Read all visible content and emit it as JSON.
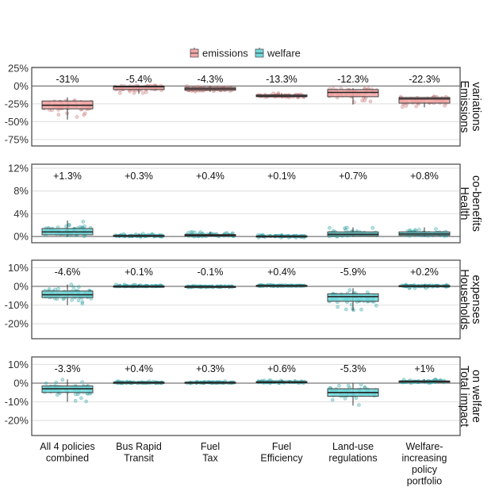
{
  "chart_data": {
    "type": "box",
    "title": "",
    "legend": {
      "position": "top",
      "entries": [
        {
          "name": "emissions",
          "fill": "#f4a9a8",
          "point": "#c97b7b"
        },
        {
          "name": "welfare",
          "fill": "#72d9dc",
          "point": "#3aa6a8"
        }
      ]
    },
    "categories": [
      "All 4 policies\ncombined",
      "Bus Rapid\nTransit",
      "Fuel\nTax",
      "Fuel\nEfficiency",
      "Land-use\nregulations",
      "Welfare-\nincreasing\npolicy\nportfolio"
    ],
    "category_labels": [
      [
        "All 4 policies",
        "combined"
      ],
      [
        "Bus Rapid",
        "Transit"
      ],
      [
        "Fuel",
        "Tax"
      ],
      [
        "Fuel",
        "Efficiency"
      ],
      [
        "Land-use",
        "regulations"
      ],
      [
        "Welfare-",
        "increasing",
        "policy",
        "portfolio"
      ]
    ],
    "panels": [
      {
        "strip": [
          "Emissions",
          "variations"
        ],
        "series": "emissions",
        "ylim": [
          -84,
          26
        ],
        "ticks": [
          25,
          0,
          -25,
          -50,
          -75
        ],
        "tick_labels": [
          "25%",
          "0%",
          "-25%",
          "-50%",
          "-75%"
        ],
        "means": [
          "-31%",
          "-5.4%",
          "-4.3%",
          "-13.3%",
          "-12.3%",
          "-22.3%"
        ],
        "boxes": [
          {
            "q1": -32,
            "median": -27,
            "q3": -21,
            "whisker_low": -47,
            "whisker_high": -16
          },
          {
            "q1": -5,
            "median": -1,
            "q3": 0,
            "whisker_low": -11,
            "whisker_high": 0
          },
          {
            "q1": -6,
            "median": -4,
            "q3": -2,
            "whisker_low": -8,
            "whisker_high": 0
          },
          {
            "q1": -15,
            "median": -14,
            "q3": -12.5,
            "whisker_low": -16,
            "whisker_high": -10
          },
          {
            "q1": -15,
            "median": -9,
            "q3": -5,
            "whisker_low": -26,
            "whisker_high": -3
          },
          {
            "q1": -24,
            "median": -18,
            "q3": -16,
            "whisker_low": -30,
            "whisker_high": -16
          }
        ]
      },
      {
        "strip": [
          "Health",
          "co-benefits"
        ],
        "series": "welfare",
        "ylim": [
          -1.1,
          12.7
        ],
        "ticks": [
          12,
          8,
          4,
          0
        ],
        "tick_labels": [
          "12%",
          "8%",
          "4%",
          "0%"
        ],
        "means": [
          "+1.3%",
          "+0.3%",
          "+0.4%",
          "+0.1%",
          "+0.7%",
          "+0.8%"
        ],
        "boxes": [
          {
            "q1": 0.3,
            "median": 0.8,
            "q3": 1.4,
            "whisker_low": 0,
            "whisker_high": 2.8
          },
          {
            "q1": 0,
            "median": 0.1,
            "q3": 0.2,
            "whisker_low": 0,
            "whisker_high": 0.5
          },
          {
            "q1": 0.05,
            "median": 0.2,
            "q3": 0.35,
            "whisker_low": 0,
            "whisker_high": 0.8
          },
          {
            "q1": 0,
            "median": 0.05,
            "q3": 0.1,
            "whisker_low": -0.2,
            "whisker_high": 0.3
          },
          {
            "q1": 0.15,
            "median": 0.4,
            "q3": 0.8,
            "whisker_low": 0,
            "whisker_high": 1.6
          },
          {
            "q1": 0.2,
            "median": 0.45,
            "q3": 0.8,
            "whisker_low": 0,
            "whisker_high": 1.6
          }
        ]
      },
      {
        "strip": [
          "Households",
          "expenses"
        ],
        "series": "welfare",
        "ylim": [
          -28,
          14
        ],
        "ticks": [
          10,
          0,
          -10,
          -20
        ],
        "tick_labels": [
          "10%",
          "0%",
          "-10%",
          "-20%"
        ],
        "means": [
          "-4.6%",
          "+0.1%",
          "-0.1%",
          "+0.4%",
          "-5.9%",
          "+0.2%"
        ],
        "boxes": [
          {
            "q1": -6,
            "median": -4.5,
            "q3": -2.5,
            "whisker_low": -10,
            "whisker_high": 1
          },
          {
            "q1": 0,
            "median": 0.1,
            "q3": 0.2,
            "whisker_low": 0,
            "whisker_high": 1
          },
          {
            "q1": -0.2,
            "median": -0.1,
            "q3": 0,
            "whisker_low": -0.5,
            "whisker_high": 0.2
          },
          {
            "q1": 0.2,
            "median": 0.4,
            "q3": 0.5,
            "whisker_low": 0.1,
            "whisker_high": 0.8
          },
          {
            "q1": -8,
            "median": -5.5,
            "q3": -4,
            "whisker_low": -13,
            "whisker_high": -1
          },
          {
            "q1": 0,
            "median": 0.2,
            "q3": 0.4,
            "whisker_low": -1,
            "whisker_high": 1
          }
        ]
      },
      {
        "strip": [
          "Total impact",
          "on welfare"
        ],
        "series": "welfare",
        "ylim": [
          -28,
          14
        ],
        "ticks": [
          10,
          0,
          -10,
          -20
        ],
        "tick_labels": [
          "10%",
          "0%",
          "-10%",
          "-20%"
        ],
        "means": [
          "-3.3%",
          "+0.4%",
          "+0.3%",
          "+0.6%",
          "-5.3%",
          "+1%"
        ],
        "boxes": [
          {
            "q1": -5,
            "median": -3,
            "q3": -1.5,
            "whisker_low": -10,
            "whisker_high": 2
          },
          {
            "q1": 0.1,
            "median": 0.3,
            "q3": 0.5,
            "whisker_low": 0,
            "whisker_high": 1
          },
          {
            "q1": 0.1,
            "median": 0.3,
            "q3": 0.5,
            "whisker_low": 0,
            "whisker_high": 1
          },
          {
            "q1": 0.3,
            "median": 0.5,
            "q3": 0.8,
            "whisker_low": 0,
            "whisker_high": 1.5
          },
          {
            "q1": -7,
            "median": -5,
            "q3": -3,
            "whisker_low": -12,
            "whisker_high": 0
          },
          {
            "q1": 0.5,
            "median": 0.8,
            "q3": 1.2,
            "whisker_low": 0,
            "whisker_high": 2
          }
        ]
      }
    ]
  }
}
